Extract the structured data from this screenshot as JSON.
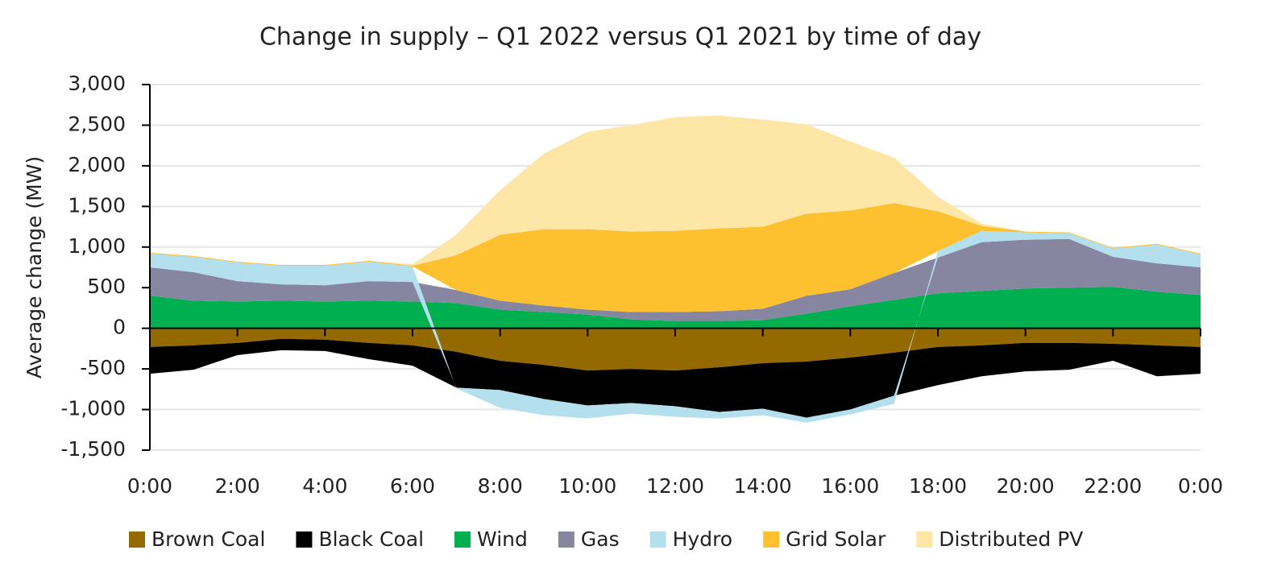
{
  "chart_data": {
    "type": "stacked-area",
    "title": "Change in supply – Q1 2022 versus Q1 2021 by time of day",
    "y_label": "Average change (MW)",
    "x": [
      0,
      1,
      2,
      3,
      4,
      5,
      6,
      7,
      8,
      9,
      10,
      11,
      12,
      13,
      14,
      15,
      16,
      17,
      18,
      19,
      20,
      21,
      22,
      23,
      24
    ],
    "xlim": [
      0,
      24
    ],
    "xticks": [
      {
        "value": 0,
        "label": "0:00"
      },
      {
        "value": 2,
        "label": "2:00"
      },
      {
        "value": 4,
        "label": "4:00"
      },
      {
        "value": 6,
        "label": "6:00"
      },
      {
        "value": 8,
        "label": "8:00"
      },
      {
        "value": 10,
        "label": "10:00"
      },
      {
        "value": 12,
        "label": "12:00"
      },
      {
        "value": 14,
        "label": "14:00"
      },
      {
        "value": 16,
        "label": "16:00"
      },
      {
        "value": 18,
        "label": "18:00"
      },
      {
        "value": 20,
        "label": "20:00"
      },
      {
        "value": 22,
        "label": "22:00"
      },
      {
        "value": 24,
        "label": "0:00"
      }
    ],
    "ylim": [
      -1500,
      3000
    ],
    "yticks": [
      {
        "value": -1500,
        "label": "-1,500"
      },
      {
        "value": -1000,
        "label": "-1,000"
      },
      -500,
      0,
      500,
      {
        "value": 1000,
        "label": "1,000"
      },
      {
        "value": 1500,
        "label": "1,500"
      },
      {
        "value": 2000,
        "label": "2,000"
      },
      {
        "value": 2500,
        "label": "2,500"
      },
      {
        "value": 3000,
        "label": "3,000"
      }
    ],
    "grid": true,
    "legend": "bottom",
    "series": [
      {
        "name": "Brown Coal",
        "color": "#946a00",
        "values": [
          -230,
          -210,
          -180,
          -130,
          -140,
          -180,
          -210,
          -290,
          -400,
          -450,
          -520,
          -500,
          -520,
          -480,
          -430,
          -410,
          -360,
          -300,
          -230,
          -210,
          -180,
          -180,
          -190,
          -210,
          -230
        ]
      },
      {
        "name": "Black Coal",
        "color": "#000000",
        "values": [
          -330,
          -300,
          -150,
          -140,
          -140,
          -200,
          -250,
          -440,
          -360,
          -420,
          -430,
          -420,
          -440,
          -550,
          -560,
          -690,
          -640,
          -530,
          -470,
          -380,
          -350,
          -330,
          -210,
          -380,
          -330
        ]
      },
      {
        "name": "Wind",
        "color": "#00b050",
        "values": [
          400,
          340,
          330,
          340,
          330,
          340,
          330,
          310,
          230,
          200,
          170,
          110,
          90,
          90,
          100,
          180,
          270,
          350,
          430,
          460,
          490,
          500,
          510,
          450,
          410
        ]
      },
      {
        "name": "Gas",
        "color": "#8686a0",
        "values": [
          350,
          350,
          250,
          200,
          200,
          240,
          240,
          160,
          110,
          80,
          60,
          90,
          110,
          120,
          140,
          220,
          210,
          330,
          440,
          600,
          600,
          600,
          370,
          350,
          340
        ]
      },
      {
        "name": "Hydro",
        "color": "#b4e0ee",
        "values": [
          170,
          190,
          230,
          230,
          240,
          240,
          190,
          -10,
          -220,
          -200,
          -160,
          -130,
          -130,
          -80,
          -80,
          -60,
          -60,
          -100,
          80,
          140,
          90,
          70,
          100,
          230,
          160
        ]
      },
      {
        "name": "Grid Solar",
        "color": "#fdc02f",
        "values": [
          10,
          10,
          10,
          10,
          10,
          10,
          10,
          430,
          810,
          940,
          990,
          990,
          1000,
          1020,
          1010,
          1010,
          970,
          860,
          490,
          60,
          10,
          10,
          10,
          10,
          10
        ]
      },
      {
        "name": "Distributed PV",
        "color": "#fde6a6",
        "values": [
          0,
          0,
          0,
          0,
          0,
          0,
          20,
          250,
          550,
          930,
          1200,
          1310,
          1400,
          1390,
          1320,
          1100,
          850,
          560,
          180,
          30,
          0,
          0,
          0,
          0,
          0
        ]
      }
    ]
  }
}
